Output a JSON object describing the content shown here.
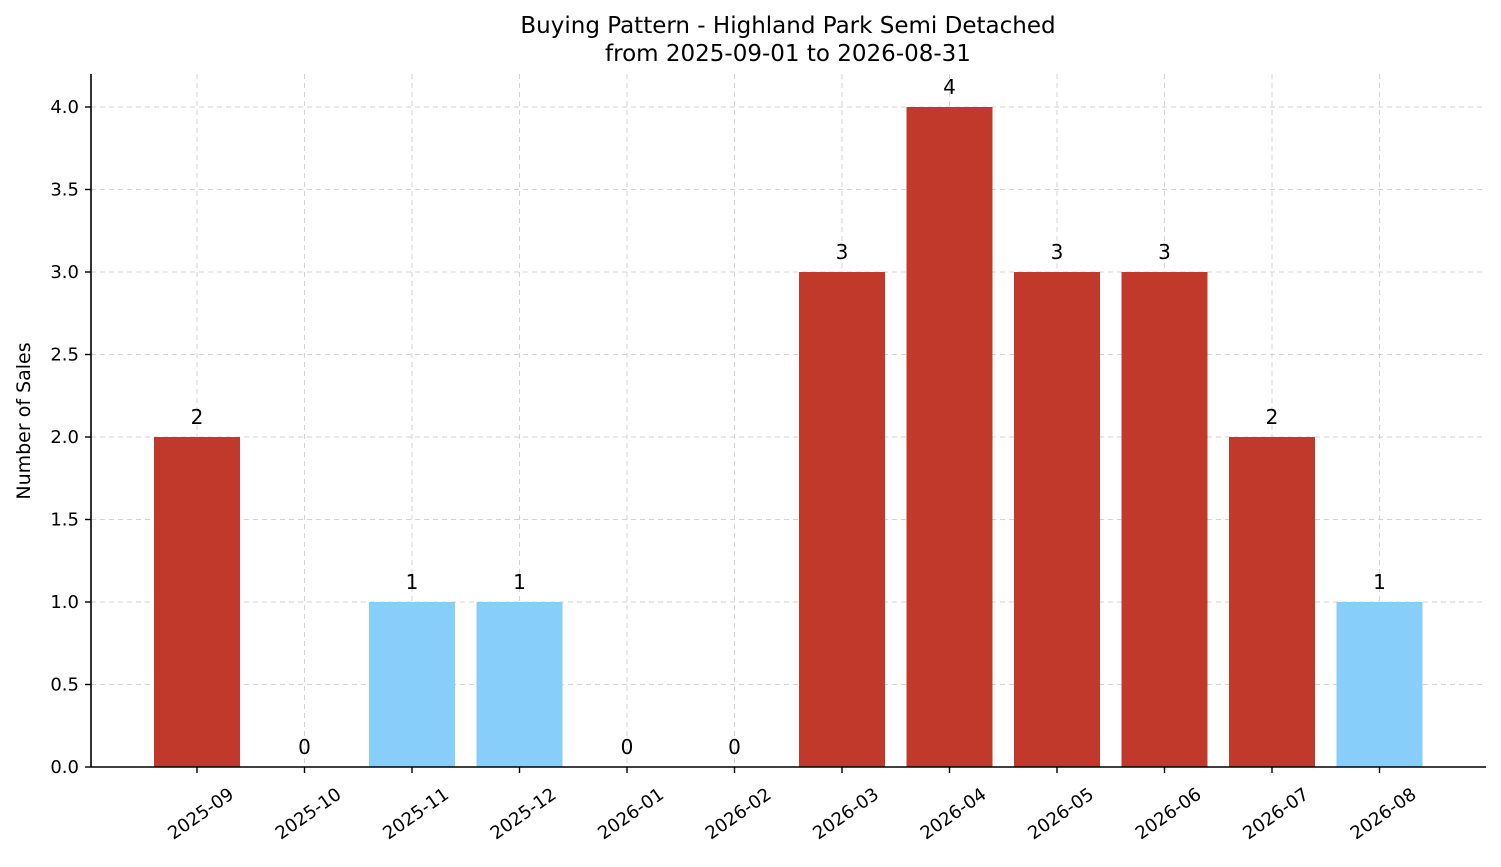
{
  "chart_data": {
    "type": "bar",
    "title": "Buying Pattern - Highland Park Semi Detached",
    "subtitle": "from 2025-09-01 to 2026-08-31",
    "xlabel": "",
    "ylabel": "Number of Sales",
    "categories": [
      "2025-09",
      "2025-10",
      "2025-11",
      "2025-12",
      "2026-01",
      "2026-02",
      "2026-03",
      "2026-04",
      "2026-05",
      "2026-06",
      "2026-07",
      "2026-08"
    ],
    "values": [
      2,
      0,
      1,
      1,
      0,
      0,
      3,
      4,
      3,
      3,
      2,
      1
    ],
    "value_labels": [
      "2",
      "0",
      "1",
      "1",
      "0",
      "0",
      "3",
      "4",
      "3",
      "3",
      "2",
      "1"
    ],
    "bar_colors": [
      "#c0392b",
      "#c0392b",
      "#87cefa",
      "#87cefa",
      "#c0392b",
      "#c0392b",
      "#c0392b",
      "#c0392b",
      "#c0392b",
      "#c0392b",
      "#c0392b",
      "#87cefa"
    ],
    "ylim": [
      0,
      4.2
    ],
    "yticks": [
      0.0,
      0.5,
      1.0,
      1.5,
      2.0,
      2.5,
      3.0,
      3.5,
      4.0
    ],
    "ytick_labels": [
      "0.0",
      "0.5",
      "1.0",
      "1.5",
      "2.0",
      "2.5",
      "3.0",
      "3.5",
      "4.0"
    ],
    "grid": true,
    "xtick_rotation": 35,
    "colors": {
      "high": "#c0392b",
      "low": "#87cefa",
      "grid": "#d3d3d3",
      "axis": "#000000"
    }
  }
}
